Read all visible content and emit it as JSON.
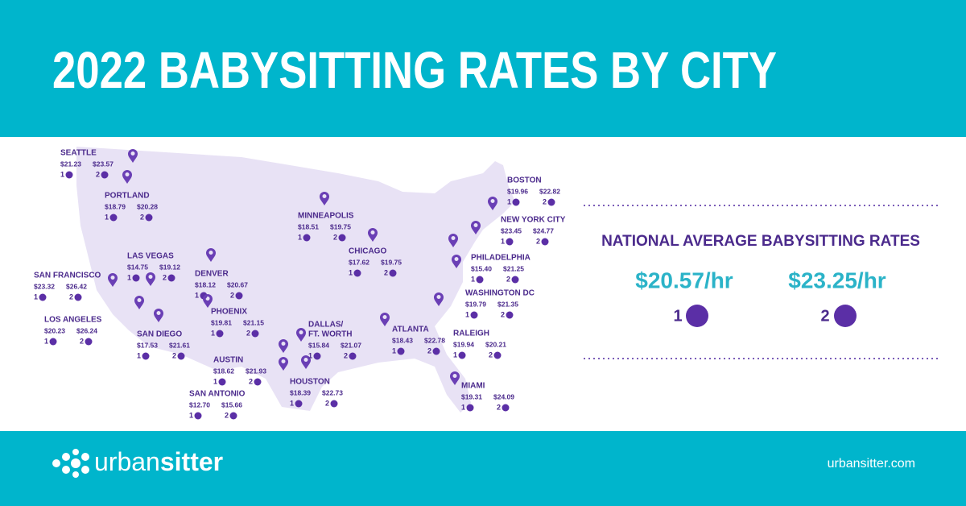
{
  "header": {
    "title": "2022 BABYSITTING RATES BY CITY"
  },
  "cities": [
    {
      "name": "SEATTLE",
      "rate1": "$21.23",
      "rate2": "$23.57",
      "kids1": "1",
      "kids2": "2"
    },
    {
      "name": "PORTLAND",
      "rate1": "$18.79",
      "rate2": "$20.28",
      "kids1": "1",
      "kids2": "2"
    },
    {
      "name": "LAS VEGAS",
      "rate1": "$14.75",
      "rate2": "$19.12",
      "kids1": "1",
      "kids2": "2"
    },
    {
      "name": "SAN FRANCISCO",
      "rate1": "$23.32",
      "rate2": "$26.42",
      "kids1": "1",
      "kids2": "2"
    },
    {
      "name": "LOS ANGELES",
      "rate1": "$20.23",
      "rate2": "$26.24",
      "kids1": "1",
      "kids2": "2"
    },
    {
      "name": "SAN DIEGO",
      "rate1": "$17.53",
      "rate2": "$21.61",
      "kids1": "1",
      "kids2": "2"
    },
    {
      "name": "DENVER",
      "rate1": "$18.12",
      "rate2": "$20.67",
      "kids1": "1",
      "kids2": "2"
    },
    {
      "name": "PHOENIX",
      "rate1": "$19.81",
      "rate2": "$21.15",
      "kids1": "1",
      "kids2": "2"
    },
    {
      "name": "AUSTIN",
      "rate1": "$18.62",
      "rate2": "$21.93",
      "kids1": "1",
      "kids2": "2"
    },
    {
      "name": "SAN ANTONIO",
      "rate1": "$12.70",
      "rate2": "$15.66",
      "kids1": "1",
      "kids2": "2"
    },
    {
      "name": "HOUSTON",
      "rate1": "$18.39",
      "rate2": "$22.73",
      "kids1": "1",
      "kids2": "2"
    },
    {
      "name": "DALLAS/",
      "name2": "FT. WORTH",
      "rate1": "$15.84",
      "rate2": "$21.07",
      "kids1": "1",
      "kids2": "2"
    },
    {
      "name": "MINNEAPOLIS",
      "rate1": "$18.51",
      "rate2": "$19.75",
      "kids1": "1",
      "kids2": "2"
    },
    {
      "name": "CHICAGO",
      "rate1": "$17.62",
      "rate2": "$19.75",
      "kids1": "1",
      "kids2": "2"
    },
    {
      "name": "ATLANTA",
      "rate1": "$18.43",
      "rate2": "$22.78",
      "kids1": "1",
      "kids2": "2"
    },
    {
      "name": "RALEIGH",
      "rate1": "$19.94",
      "rate2": "$20.21",
      "kids1": "1",
      "kids2": "2"
    },
    {
      "name": "MIAMI",
      "rate1": "$19.31",
      "rate2": "$24.09",
      "kids1": "1",
      "kids2": "2"
    },
    {
      "name": "WASHINGTON DC",
      "rate1": "$19.79",
      "rate2": "$21.35",
      "kids1": "1",
      "kids2": "2"
    },
    {
      "name": "PHILADELPHIA",
      "rate1": "$15.40",
      "rate2": "$21.25",
      "kids1": "1",
      "kids2": "2"
    },
    {
      "name": "NEW YORK CITY",
      "rate1": "$23.45",
      "rate2": "$24.77",
      "kids1": "1",
      "kids2": "2"
    },
    {
      "name": "BOSTON",
      "rate1": "$19.96",
      "rate2": "$22.82",
      "kids1": "1",
      "kids2": "2"
    }
  ],
  "national": {
    "title": "NATIONAL AVERAGE BABYSITTING RATES",
    "rate1": "$20.57/hr",
    "rate2": "$23.25/hr",
    "kids1": "1",
    "kids2": "2"
  },
  "footer": {
    "brand": [
      "urban",
      "sitter"
    ],
    "url": "urbansitter.com"
  }
}
